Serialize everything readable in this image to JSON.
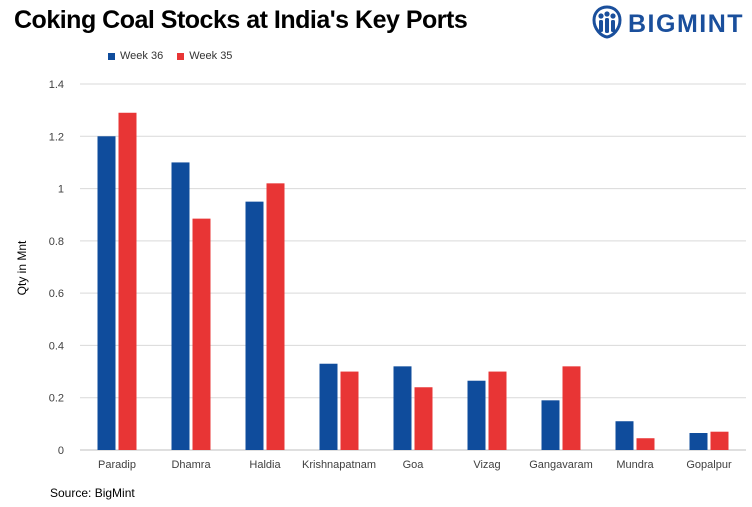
{
  "header": {
    "title": "Coking Coal Stocks at India's Key Ports",
    "logo_text": "BIGMINT",
    "logo_icon": "bigmint-people-icon"
  },
  "footer": {
    "source": "Source: BigMint"
  },
  "colors": {
    "week36": "#0f4c9c",
    "week35": "#e83535",
    "grid": "#d9d9d9",
    "axis": "#bfbfbf",
    "brand": "#1a4f9c"
  },
  "chart_data": {
    "type": "bar",
    "title": "Coking Coal Stocks at India's Key Ports",
    "xlabel": "",
    "ylabel": "Qty in Mnt",
    "ylim": [
      0,
      1.4
    ],
    "yticks": [
      "0",
      "0.2",
      "0.4",
      "0.6",
      "0.8",
      "1",
      "1.2",
      "1.4"
    ],
    "grid": true,
    "legend_position": "top-left",
    "categories": [
      "Paradip",
      "Dhamra",
      "Haldia",
      "Krishnapatnam",
      "Goa",
      "Vizag",
      "Gangavaram",
      "Mundra",
      "Gopalpur"
    ],
    "series": [
      {
        "name": "Week 36",
        "values": [
          1.2,
          1.1,
          0.95,
          0.33,
          0.32,
          0.265,
          0.19,
          0.11,
          0.065
        ]
      },
      {
        "name": "Week 35",
        "values": [
          1.29,
          0.885,
          1.02,
          0.3,
          0.24,
          0.3,
          0.32,
          0.045,
          0.07
        ]
      }
    ]
  }
}
